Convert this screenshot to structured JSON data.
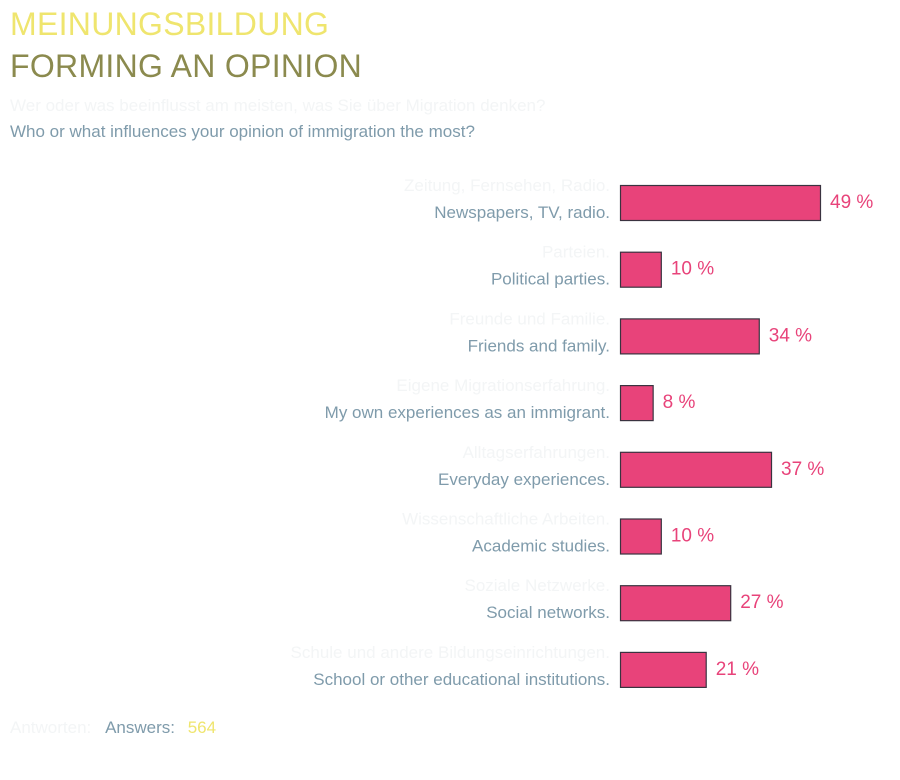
{
  "header": {
    "title_de": "MEINUNGSBILDUNG",
    "title_en": "FORMING AN OPINION",
    "question_de": "Wer oder was beeinflusst am meisten, was Sie über Migration denken?",
    "question_en": "Who or what influences your opinion of immigration the most?"
  },
  "chart_data": {
    "type": "bar",
    "orientation": "horizontal",
    "categories": [
      "Newspapers, TV, radio.",
      "Political parties.",
      "Friends and family.",
      "My own experiences as an immigrant.",
      "Everyday experiences.",
      "Academic studies.",
      "Social networks.",
      "School or other educational institutions."
    ],
    "categories_de": [
      "Zeitung, Fernsehen, Radio.",
      "Parteien.",
      "Freunde und Familie.",
      "Eigene Migrationserfahrung.",
      "Alltagserfahrungen.",
      "Wissenschaftliche Arbeiten.",
      "Soziale Netzwerke.",
      "Schule und andere Bildungseinrichtungen."
    ],
    "values": [
      49,
      10,
      34,
      8,
      37,
      10,
      27,
      21
    ],
    "value_labels": [
      "49 %",
      "10 %",
      "34 %",
      "8 %",
      "37 %",
      "10 %",
      "27 %",
      "21 %"
    ],
    "unit": "%",
    "grid": false,
    "colors": {
      "bar": "#e8437a",
      "bar_border": "#3a3340",
      "label": "#7f9bab",
      "value": "#e8437a"
    }
  },
  "footer": {
    "answers_de": "Antworten:",
    "answers_en": "Answers:",
    "answers_value": "564"
  }
}
